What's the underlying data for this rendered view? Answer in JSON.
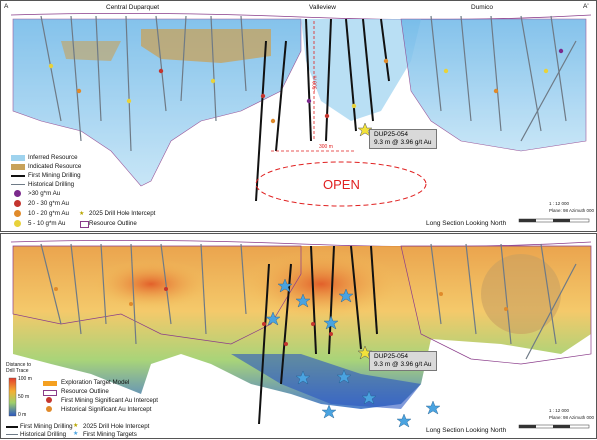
{
  "top": {
    "section_labels": {
      "left": "Central Duparquet",
      "middle": "Valleview",
      "right": "Dumico"
    },
    "corner_left": "A",
    "corner_right": "A'",
    "vertical_dim": "~500 m",
    "horizontal_dim": "300 m",
    "open_label": "OPEN",
    "callout": {
      "id": "DUP25-054",
      "value": "9.3 m @ 3.96 g/t Au"
    },
    "legend": [
      {
        "label": "Inferred Resource",
        "color": "#9fd3ee"
      },
      {
        "label": "Indicated Resource",
        "color": "#c8a25a"
      },
      {
        "label": "First Mining Drilling",
        "color": "#111111"
      },
      {
        "label": "Historical Drilling",
        "color": "#6e7a86"
      },
      {
        "label": ">30 g*m Au",
        "color": "#7b2a8c"
      },
      {
        "label": "20 - 30 g*m Au",
        "color": "#c4352e"
      },
      {
        "label": "10 - 20 g*m Au",
        "color": "#e08a2a"
      },
      {
        "label": "5 - 10 g*m Au",
        "color": "#e8d23a"
      },
      {
        "label": "2025 Drill Hole Intercept",
        "color": "#f2e23a"
      },
      {
        "label": "Resource Outline",
        "color": "#8a3c8a"
      }
    ],
    "footer": "Long Section Looking North",
    "scale_text": "1 : 12 000",
    "plan_text": "Plane: 98 Azimuth 000"
  },
  "bottom": {
    "callout": {
      "id": "DUP25-054",
      "value": "9.3 m @ 3.96 g/t Au"
    },
    "legend_title": "Distance to Drill Trace",
    "colorbar_labels": [
      "100 m",
      "50 m",
      "0 m"
    ],
    "legend": [
      {
        "label": "Exploration Target Model",
        "color": "#f4a020"
      },
      {
        "label": "Resource Outline",
        "color": "#8a3c8a"
      },
      {
        "label": "First Mining Significant Au Intercept",
        "color": "#c4352e"
      },
      {
        "label": "Historical Significant Au Intercept",
        "color": "#e08a2a"
      },
      {
        "label": "First Mining Drilling",
        "color": "#111111"
      },
      {
        "label": "2025 Drill Hole Intercept",
        "color": "#f2e23a"
      },
      {
        "label": "Historical Drilling",
        "color": "#6e7a86"
      },
      {
        "label": "First Mining Targets",
        "color": "#4aa3e0"
      }
    ],
    "footer": "Long Section Looking North",
    "scale_text": "1 : 12 000",
    "plan_text": "Plane: 98 Azimuth 000"
  }
}
